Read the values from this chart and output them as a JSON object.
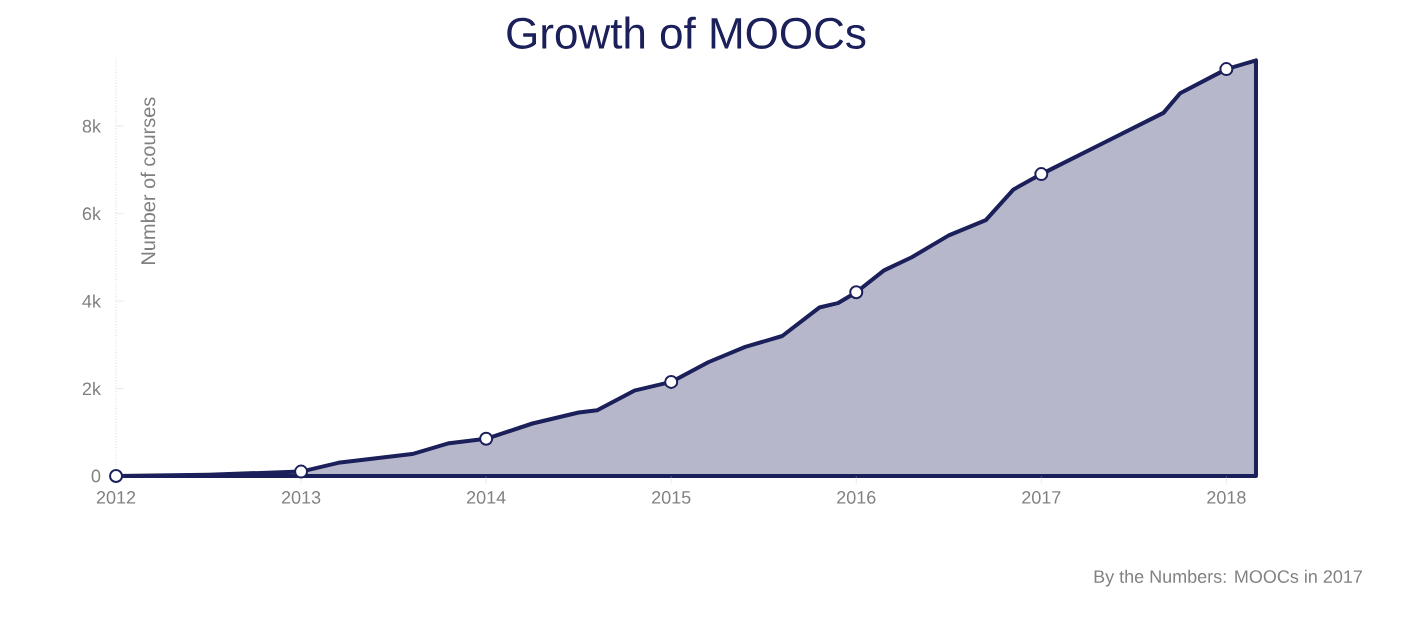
{
  "chart_data": {
    "type": "area",
    "title": "Growth of MOOCs",
    "ylabel": "Number of courses",
    "annotations": [
      "By the Numbers: MOOCs in 2017"
    ],
    "xlim": [
      2012,
      2018.16
    ],
    "xticks": [
      2012,
      2013,
      2014,
      2015,
      2016,
      2017,
      2018
    ],
    "ylim": [
      0,
      9600
    ],
    "yticks": [
      {
        "value": 0,
        "label": "0"
      },
      {
        "value": 2000,
        "label": "2k"
      },
      {
        "value": 4000,
        "label": "4k"
      },
      {
        "value": 6000,
        "label": "6k"
      },
      {
        "value": 8000,
        "label": "8k"
      }
    ],
    "grid": false,
    "series": [
      {
        "color": "#1b1f5a",
        "x": [
          2012,
          2012.5,
          2013,
          2013.2,
          2013.6,
          2013.8,
          2014,
          2014.25,
          2014.5,
          2014.6,
          2014.8,
          2015,
          2015.2,
          2015.4,
          2015.6,
          2015.8,
          2015.9,
          2016,
          2016.15,
          2016.3,
          2016.5,
          2016.7,
          2016.85,
          2017,
          2017.33,
          2017.66,
          2017.75,
          2018,
          2018.16
        ],
        "values": [
          0,
          30,
          100,
          300,
          500,
          750,
          850,
          1200,
          1450,
          1500,
          1950,
          2150,
          2600,
          2950,
          3200,
          3850,
          3950,
          4200,
          4700,
          5000,
          5500,
          5850,
          6550,
          6900,
          7600,
          8300,
          8750,
          9300,
          9500
        ]
      },
      {
        "type": "scatter",
        "color": "#ffffff",
        "marker": "circle",
        "x": [
          2012,
          2013,
          2014,
          2015,
          2016,
          2017,
          2018
        ],
        "values": [
          0,
          100,
          850,
          2150,
          4200,
          6900,
          9300
        ]
      }
    ]
  }
}
